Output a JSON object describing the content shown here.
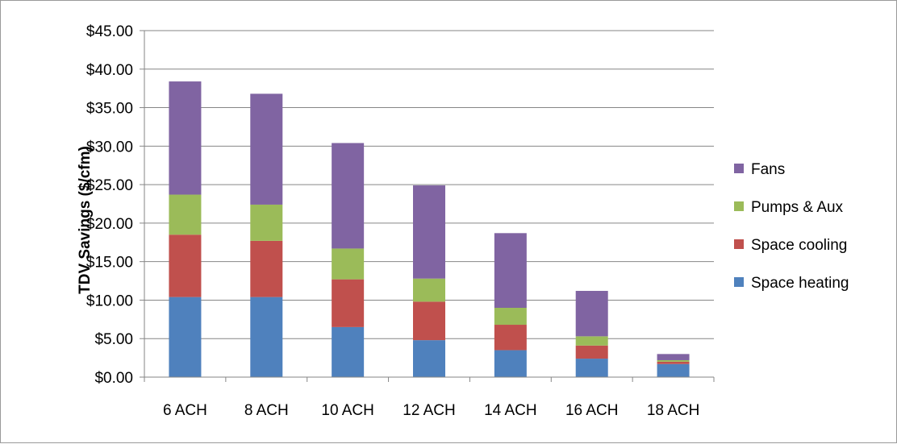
{
  "chart_data": {
    "type": "bar",
    "stacked": true,
    "title": "",
    "xlabel": "",
    "ylabel": "TDV Savings ($/cfm)",
    "ylim": [
      0,
      45
    ],
    "y_ticks": [
      "$0.00",
      "$5.00",
      "$10.00",
      "$15.00",
      "$20.00",
      "$25.00",
      "$30.00",
      "$35.00",
      "$40.00",
      "$45.00"
    ],
    "grid": true,
    "legend_position": "right",
    "categories": [
      "6 ACH",
      "8 ACH",
      "10 ACH",
      "12 ACH",
      "14 ACH",
      "16 ACH",
      "18 ACH"
    ],
    "series": [
      {
        "name": "Space heating",
        "color": "#4f81bd",
        "values": [
          10.4,
          10.4,
          6.5,
          4.8,
          3.5,
          2.4,
          1.7
        ]
      },
      {
        "name": "Space cooling",
        "color": "#c0504d",
        "values": [
          8.1,
          7.3,
          6.2,
          5.0,
          3.3,
          1.7,
          0.3
        ]
      },
      {
        "name": "Pumps & Aux",
        "color": "#9bbb59",
        "values": [
          5.2,
          4.7,
          4.0,
          3.0,
          2.2,
          1.2,
          0.2
        ]
      },
      {
        "name": "Fans",
        "color": "#8064a2",
        "values": [
          14.7,
          14.4,
          13.7,
          12.1,
          9.7,
          5.9,
          0.8
        ]
      }
    ],
    "legend_order": [
      "Fans",
      "Pumps & Aux",
      "Space cooling",
      "Space heating"
    ]
  }
}
